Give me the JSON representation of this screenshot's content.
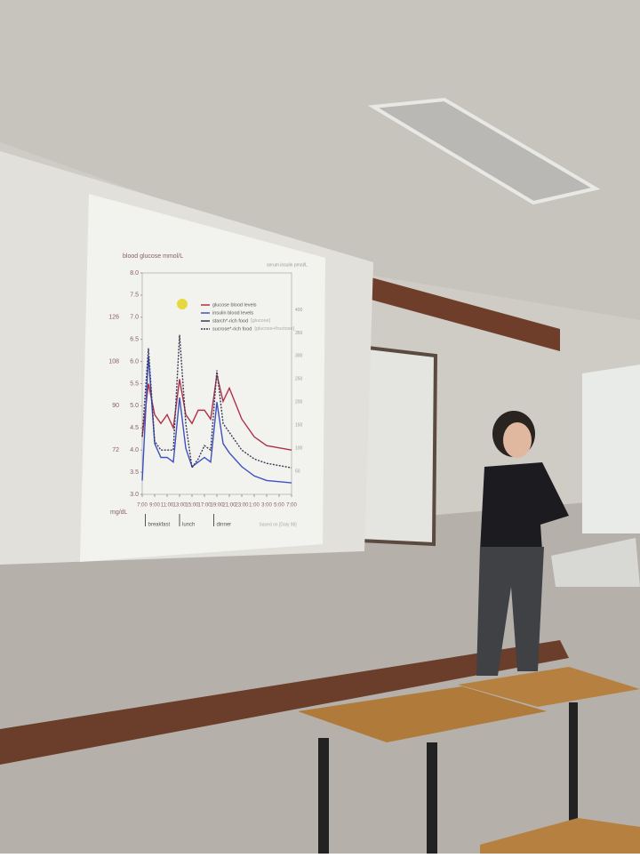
{
  "slide": {
    "chart_data": {
      "type": "line",
      "y_label": "blood glucose mmol/L",
      "y2_label": "serum insulin pmol/L",
      "mg_unit": "mg/dL",
      "source": "based on [Daly 98]",
      "ylim": [
        3.0,
        8.0
      ],
      "yticks": [
        {
          "value": 3,
          "label": "3.0"
        },
        3.5,
        {
          "value": 4,
          "label": "4.0"
        },
        4.5,
        {
          "value": 5,
          "label": "5.0"
        },
        5.5,
        {
          "value": 6,
          "label": "6.0"
        },
        6.5,
        {
          "value": 7,
          "label": "7.0"
        },
        7.5,
        {
          "value": 8,
          "label": "8.0"
        }
      ],
      "mg_ticks": [
        {
          "value": 4,
          "label": "72"
        },
        {
          "value": 5,
          "label": "90"
        },
        {
          "value": 6,
          "label": "108"
        },
        {
          "value": 7,
          "label": "126"
        }
      ],
      "y2lim": [
        0,
        480
      ],
      "y2ticks": [
        50,
        100,
        150,
        200,
        250,
        300,
        350,
        400
      ],
      "xlim": [
        7,
        31
      ],
      "xticks": [
        {
          "value": 7,
          "label": "7:00"
        },
        {
          "value": 9,
          "label": "9:00"
        },
        {
          "value": 11,
          "label": "11:00"
        },
        {
          "value": 13,
          "label": "13:00"
        },
        {
          "value": 15,
          "label": "15:00"
        },
        {
          "value": 17,
          "label": "17:00"
        },
        {
          "value": 19,
          "label": "19:00"
        },
        {
          "value": 21,
          "label": "21:00"
        },
        {
          "value": 23,
          "label": "23:00"
        },
        {
          "value": 25,
          "label": "1:00"
        },
        {
          "value": 27,
          "label": "3:00"
        },
        {
          "value": 29,
          "label": "5:00"
        },
        {
          "value": 31,
          "label": "7:00"
        }
      ],
      "meals": [
        {
          "label": "breakfast",
          "x": 7.5
        },
        {
          "label": "lunch",
          "x": 13
        },
        {
          "label": "dinner",
          "x": 18.5
        }
      ],
      "legend": [
        {
          "label": "glucose blood levels",
          "color": "#b0304a",
          "dash": false
        },
        {
          "label": "insulin blood levels",
          "color": "#4050c0",
          "dash": false
        },
        {
          "label": "starch*-rich food",
          "note": "[glucose]",
          "color": "#3a3a55",
          "dash": false
        },
        {
          "label": "sucrose*-rich food",
          "note": "[glucose+fructose]",
          "color": "#3a3a55",
          "dash": true
        }
      ],
      "x": [
        7,
        8,
        9,
        10,
        11,
        12,
        13,
        14,
        15,
        16,
        17,
        18,
        19,
        20,
        21,
        23,
        25,
        27,
        31
      ],
      "series": [
        {
          "color": "#b0304a",
          "dash": false,
          "axis": "y",
          "values": [
            4.3,
            5.5,
            4.8,
            4.6,
            4.8,
            4.5,
            5.6,
            4.8,
            4.6,
            4.9,
            4.9,
            4.7,
            5.7,
            5.1,
            5.4,
            4.7,
            4.3,
            4.1,
            4.0
          ]
        },
        {
          "color": "#4050c0",
          "dash": false,
          "axis": "y2",
          "values": [
            30,
            300,
            110,
            80,
            80,
            70,
            210,
            100,
            60,
            70,
            80,
            70,
            200,
            110,
            90,
            60,
            40,
            30,
            25
          ]
        },
        {
          "color": "#3a3a55",
          "dash": true,
          "axis": "y",
          "values": [
            4.3,
            6.3,
            4.2,
            4.0,
            4.0,
            4.0,
            6.6,
            4.6,
            3.6,
            3.8,
            4.1,
            4.0,
            5.8,
            4.6,
            4.4,
            4.0,
            3.8,
            3.7,
            3.6
          ]
        }
      ]
    }
  }
}
